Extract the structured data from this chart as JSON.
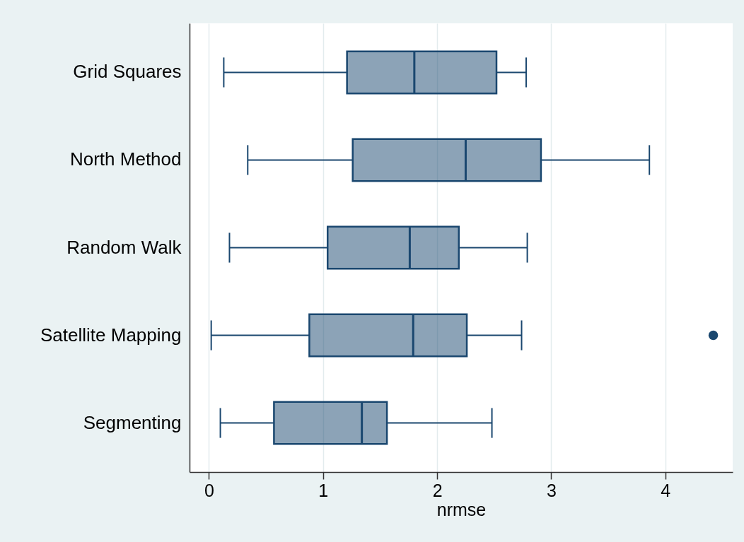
{
  "chart_data": {
    "type": "box",
    "orientation": "horizontal",
    "categories": [
      "Grid Squares",
      "North Method",
      "Random Walk",
      "Satellite Mapping",
      "Segmenting"
    ],
    "boxes": [
      {
        "low": 0.13,
        "q1": 1.21,
        "median": 1.8,
        "q3": 2.52,
        "high": 2.78
      },
      {
        "low": 0.34,
        "q1": 1.26,
        "median": 2.25,
        "q3": 2.91,
        "high": 3.86
      },
      {
        "low": 0.18,
        "q1": 1.04,
        "median": 1.76,
        "q3": 2.19,
        "high": 2.79
      },
      {
        "low": 0.02,
        "q1": 0.88,
        "median": 1.79,
        "q3": 2.26,
        "high": 2.74,
        "outliers": [
          4.42
        ]
      },
      {
        "low": 0.1,
        "q1": 0.57,
        "median": 1.34,
        "q3": 1.56,
        "high": 2.48
      }
    ],
    "color": "#1a476f",
    "xlabel": "nrmse",
    "xlim": [
      -0.17,
      4.59
    ],
    "xticks": [
      0,
      1,
      2,
      3,
      4
    ],
    "grid": "x"
  }
}
